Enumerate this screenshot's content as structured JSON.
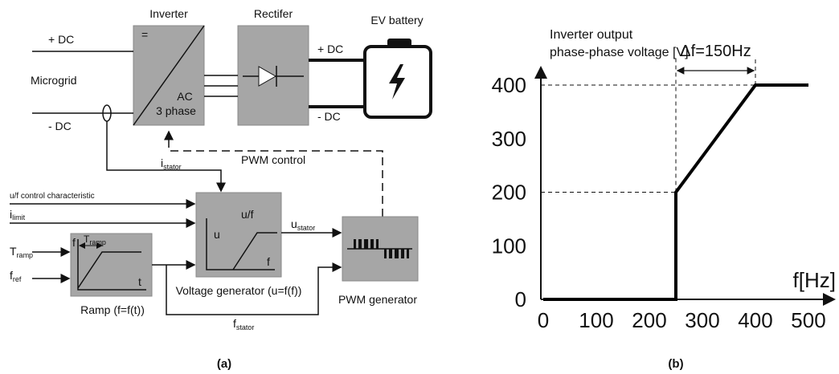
{
  "diagram": {
    "inverter": {
      "title": "Inverter",
      "dc_symbol": "=",
      "ac": "AC",
      "phase": "3 phase"
    },
    "rectifier": {
      "title": "Rectifer"
    },
    "battery": {
      "title": "EV battery",
      "plus": "+ DC",
      "minus": "- DC"
    },
    "microgrid": {
      "label": "Microgrid",
      "plus": "+ DC",
      "minus": "- DC"
    },
    "i_stator": {
      "base": "i",
      "sub": "stator"
    },
    "pwm_control": "PWM control",
    "uf_char": "u/f control characteristic",
    "i_limit": {
      "base": "i",
      "sub": "limit"
    },
    "t_ramp": {
      "base": "T",
      "sub": "ramp"
    },
    "f_ref": {
      "base": "f",
      "sub": "ref"
    },
    "voltage_generator": {
      "title": "u/f",
      "u": "u",
      "f": "f",
      "caption": "Voltage generator (u=f(f))"
    },
    "u_stator": {
      "base": "u",
      "sub": "stator"
    },
    "ramp": {
      "f": "f",
      "t_ramp": {
        "base": "T",
        "sub": "ramp"
      },
      "t": "t",
      "caption": "Ramp (f=f(t))"
    },
    "pwm_generator": "PWM generator",
    "f_stator": {
      "base": "f",
      "sub": "stator"
    },
    "caption": "(a)"
  },
  "chart_data": {
    "type": "line",
    "ylabel": [
      "Inverter output",
      "phase-phase voltage [V]"
    ],
    "xlabel": "f[Hz]",
    "annotation": "Δf=150Hz",
    "caption": "(b)",
    "x": [
      0,
      250,
      250,
      400,
      500
    ],
    "series": [
      {
        "color": "#000000",
        "values": [
          0,
          0,
          200,
          400,
          400
        ]
      }
    ],
    "xlim": [
      0,
      500
    ],
    "ylim": [
      0,
      400
    ],
    "xticks": [
      0,
      100,
      200,
      300,
      400,
      500
    ],
    "yticks": [
      0,
      100,
      200,
      300,
      400
    ]
  }
}
